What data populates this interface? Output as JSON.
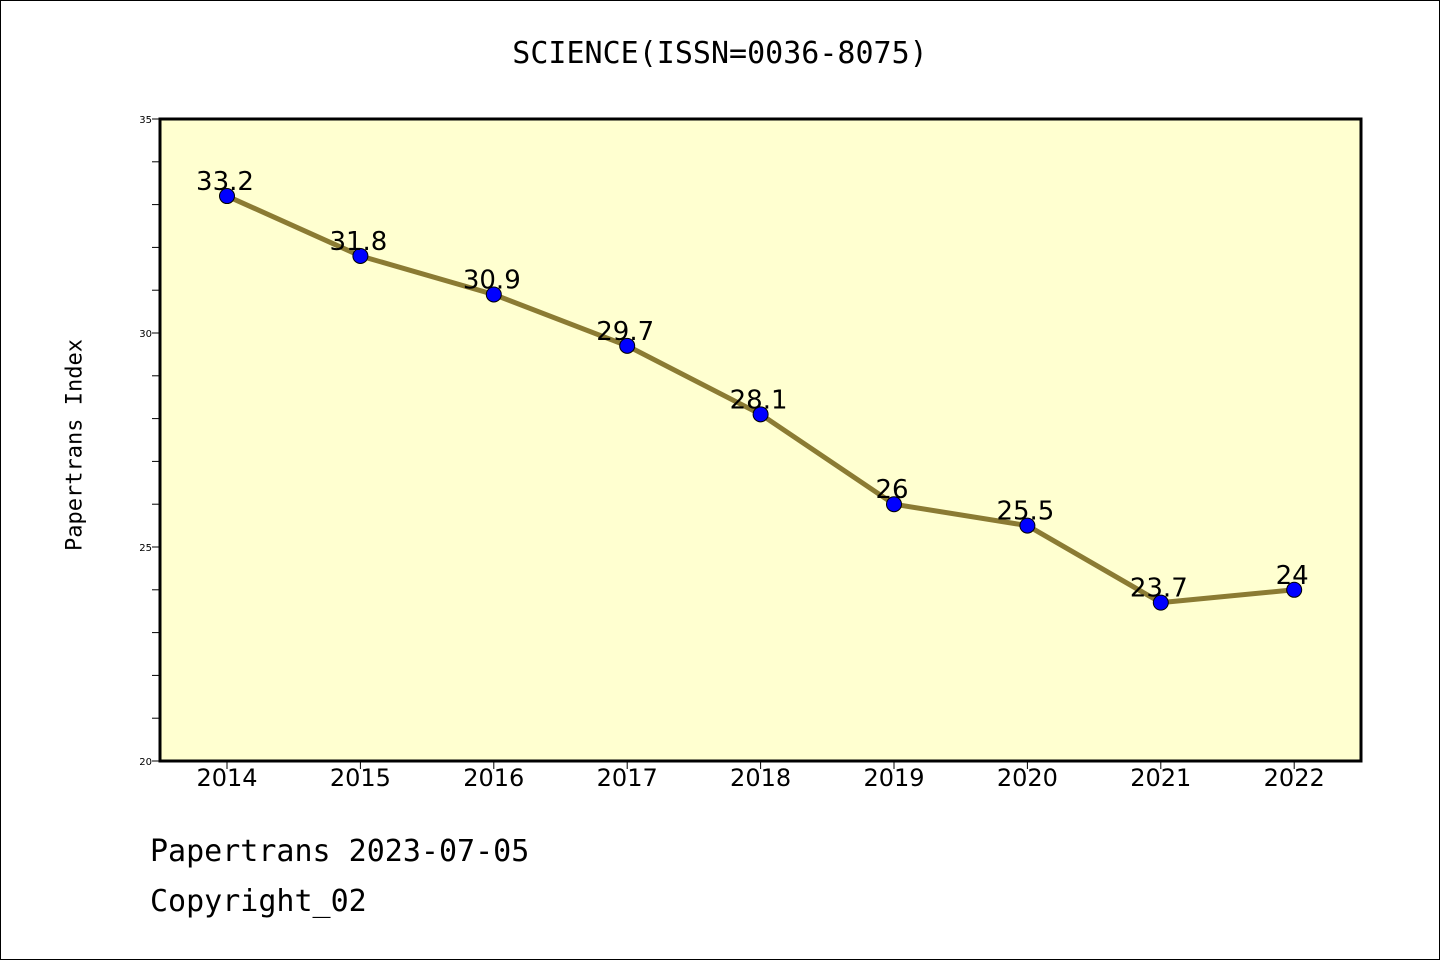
{
  "page": {
    "footer_line1": "Papertrans 2023-07-05",
    "footer_line2": "Copyright_02"
  },
  "chart_data": {
    "type": "line",
    "title": "SCIENCE(ISSN=0036-8075)",
    "xlabel": "",
    "ylabel": "Papertrans Index",
    "categories": [
      "2014",
      "2015",
      "2016",
      "2017",
      "2018",
      "2019",
      "2020",
      "2021",
      "2022"
    ],
    "series": [
      {
        "name": "Papertrans Index",
        "values": [
          33.2,
          31.8,
          30.9,
          29.7,
          28.1,
          26,
          25.5,
          23.7,
          24
        ],
        "labels": [
          "33.2",
          "31.8",
          "30.9",
          "29.7",
          "28.1",
          "26",
          "25.5",
          "23.7",
          "24"
        ],
        "line_color": "#8b7b33",
        "marker_color": "#0000ff"
      }
    ],
    "ylim": [
      20,
      35
    ],
    "yticks": [
      "20",
      "25",
      "30",
      "35"
    ],
    "plot_background": "#ffffd0",
    "grid": false,
    "legend": "none"
  }
}
